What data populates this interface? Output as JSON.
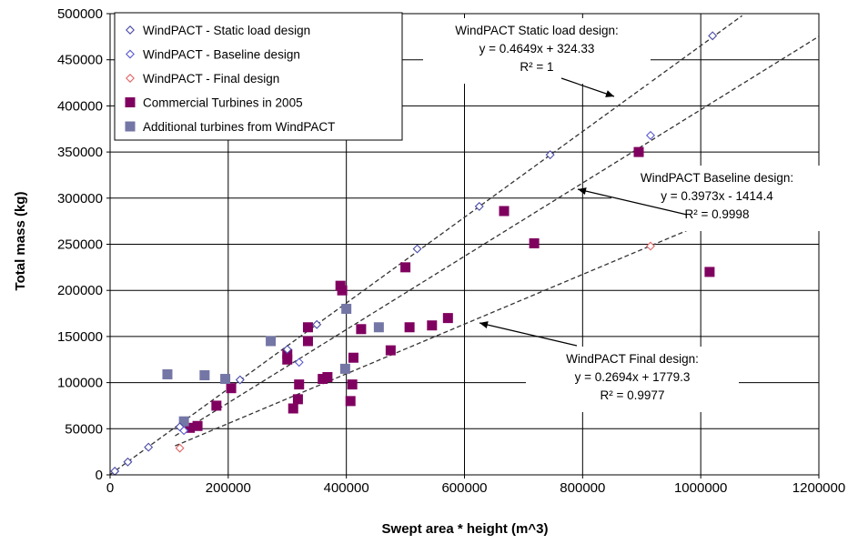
{
  "chart_data": {
    "type": "scatter",
    "xlabel": "Swept area * height (m^3)",
    "ylabel": "Total mass (kg)",
    "xlim": [
      0,
      1200000
    ],
    "ylim": [
      0,
      500000
    ],
    "x_ticks": [
      "0",
      "200000",
      "400000",
      "600000",
      "800000",
      "1000000",
      "1200000"
    ],
    "y_ticks": [
      "0",
      "50000",
      "100000",
      "150000",
      "200000",
      "250000",
      "300000",
      "350000",
      "400000",
      "450000",
      "500000"
    ],
    "grid": true,
    "legend_position": "top-left",
    "series": [
      {
        "name": "WindPACT - Static load design",
        "marker": "diamond-open",
        "color": "#4b4ba8",
        "points": [
          [
            8000,
            4000
          ],
          [
            30000,
            14000
          ],
          [
            65000,
            30000
          ],
          [
            118000,
            52000
          ],
          [
            220000,
            103000
          ],
          [
            300000,
            136000
          ],
          [
            350000,
            163000
          ],
          [
            520000,
            245000
          ],
          [
            625000,
            291000
          ],
          [
            745000,
            347000
          ],
          [
            1020000,
            476000
          ]
        ]
      },
      {
        "name": "WindPACT - Baseline design",
        "marker": "diamond-open",
        "color": "#5a5ad0",
        "points": [
          [
            125000,
            48000
          ],
          [
            320000,
            122000
          ],
          [
            915000,
            368000
          ]
        ]
      },
      {
        "name": "WindPACT - Final design",
        "marker": "diamond-open",
        "color": "#e06666",
        "points": [
          [
            118000,
            29000
          ],
          [
            915000,
            248000
          ]
        ]
      },
      {
        "name": "Commercial Turbines in 2005",
        "marker": "square",
        "color": "#800060",
        "points": [
          [
            135000,
            51000
          ],
          [
            148000,
            53000
          ],
          [
            180000,
            75000
          ],
          [
            205000,
            94000
          ],
          [
            300000,
            125000
          ],
          [
            300000,
            131000
          ],
          [
            310000,
            72000
          ],
          [
            318000,
            82000
          ],
          [
            320000,
            98000
          ],
          [
            335000,
            145000
          ],
          [
            335000,
            160000
          ],
          [
            360000,
            104000
          ],
          [
            368000,
            106000
          ],
          [
            390000,
            205000
          ],
          [
            393000,
            200000
          ],
          [
            407000,
            80000
          ],
          [
            410000,
            98000
          ],
          [
            412000,
            127000
          ],
          [
            425000,
            158000
          ],
          [
            475000,
            135000
          ],
          [
            500000,
            225000
          ],
          [
            507000,
            160000
          ],
          [
            545000,
            162000
          ],
          [
            572000,
            170000
          ],
          [
            667000,
            286000
          ],
          [
            718000,
            251000
          ],
          [
            895000,
            350000
          ],
          [
            1015000,
            220000
          ]
        ]
      },
      {
        "name": "Additional turbines from WindPACT",
        "marker": "square",
        "color": "#7476a6",
        "points": [
          [
            97000,
            109000
          ],
          [
            125000,
            58000
          ],
          [
            160000,
            108000
          ],
          [
            195000,
            104000
          ],
          [
            272000,
            145000
          ],
          [
            398000,
            115000
          ],
          [
            400000,
            180000
          ],
          [
            455000,
            160000
          ]
        ]
      }
    ],
    "trendlines": [
      {
        "name": "WindPACT Static load design",
        "slope": 0.4649,
        "intercept": 324.33,
        "x_range": [
          0,
          1070000
        ]
      },
      {
        "name": "WindPACT Baseline design",
        "slope": 0.3973,
        "intercept": -1414.4,
        "x_range": [
          110000,
          1200000
        ]
      },
      {
        "name": "WindPACT Final design",
        "slope": 0.2694,
        "intercept": 1779.3,
        "x_range": [
          110000,
          1200000
        ]
      }
    ],
    "annotations": [
      {
        "lines": [
          "WindPACT Static load design:",
          "y = 0.4649x + 324.33",
          "R² = 1"
        ]
      },
      {
        "lines": [
          "WindPACT Baseline design:",
          "y = 0.3973x - 1414.4",
          "R² = 0.9998"
        ]
      },
      {
        "lines": [
          "WindPACT Final design:",
          "y = 0.2694x + 1779.3",
          "R² = 0.9977"
        ]
      }
    ]
  }
}
